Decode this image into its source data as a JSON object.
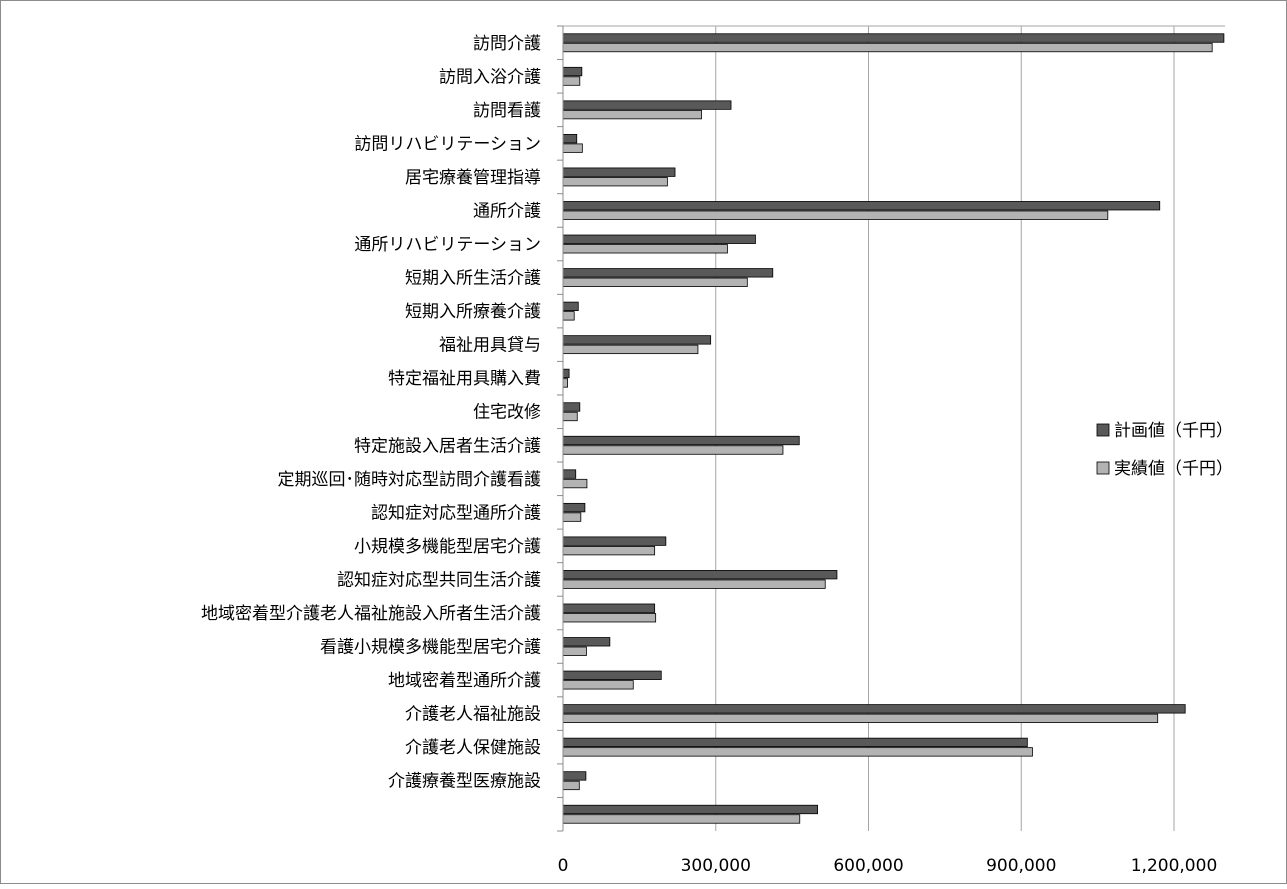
{
  "chart_data": {
    "type": "bar",
    "orientation": "horizontal",
    "title": "",
    "xlabel": "",
    "ylabel": "",
    "xlim": [
      0,
      1300000
    ],
    "x_ticks": [
      0,
      300000,
      600000,
      900000,
      1200000
    ],
    "x_tick_labels": [
      "0",
      "300,000",
      "600,000",
      "900,000",
      "1,200,000"
    ],
    "grid": "vertical major",
    "legend_position": "right",
    "categories": [
      "訪問介護",
      "訪問入浴介護",
      "訪問看護",
      "訪問リハビリテーション",
      "居宅療養管理指導",
      "通所介護",
      "通所リハビリテーション",
      "短期入所生活介護",
      "短期入所療養介護",
      "福祉用具貸与",
      "特定福祉用具購入費",
      "住宅改修",
      "特定施設入居者生活介護",
      "定期巡回･随時対応型訪問介護看護",
      "認知症対応型通所介護",
      "小規模多機能型居宅介護",
      "認知症対応型共同生活介護",
      "地域密着型介護老人福祉施設入所者生活介護",
      "看護小規模多機能型居宅介護",
      "地域密着型通所介護",
      "介護老人福祉施設",
      "介護老人保健施設",
      "介護療養型医療施設",
      ""
    ],
    "series": [
      {
        "name": "計画値（千円）",
        "color": "#595959",
        "values": [
          1298000,
          37000,
          330000,
          27000,
          220000,
          1172000,
          378000,
          412000,
          30000,
          290000,
          12000,
          33000,
          464000,
          25000,
          43000,
          202000,
          538000,
          180000,
          92000,
          193000,
          1222000,
          912000,
          45000,
          500000
        ]
      },
      {
        "name": "実績値（千円）",
        "color": "#b3b3b3",
        "values": [
          1275000,
          33000,
          272000,
          38000,
          205000,
          1070000,
          323000,
          362000,
          22000,
          265000,
          9000,
          28000,
          432000,
          47000,
          35000,
          180000,
          515000,
          182000,
          46000,
          138000,
          1168000,
          922000,
          32000,
          465000
        ]
      }
    ]
  }
}
